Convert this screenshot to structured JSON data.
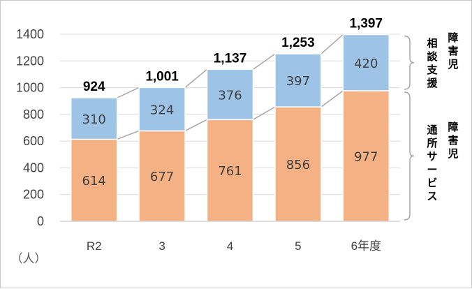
{
  "chart_data": {
    "type": "bar",
    "stacked": true,
    "categories": [
      "R2",
      "3",
      "4",
      "5",
      "6年度"
    ],
    "series": [
      {
        "name": "障害児通所サービス",
        "values": [
          614,
          677,
          761,
          856,
          977
        ],
        "color": "#f4b183"
      },
      {
        "name": "障害児相談支援",
        "values": [
          310,
          324,
          376,
          397,
          420
        ],
        "color": "#9dc3e6"
      }
    ],
    "totals": [
      "924",
      "1,001",
      "1,137",
      "1,253",
      "1,397"
    ],
    "ylabel": "（人）",
    "ylim": [
      0,
      1400
    ],
    "yticks": [
      0,
      200,
      400,
      600,
      800,
      1000,
      1200,
      1400
    ],
    "grid": true,
    "bracket_labels": [
      {
        "top": "障害児",
        "bottom": "相談支援",
        "series_index": 1
      },
      {
        "top": "障害児",
        "bottom": "通所サービス",
        "series_index": 0
      }
    ]
  }
}
